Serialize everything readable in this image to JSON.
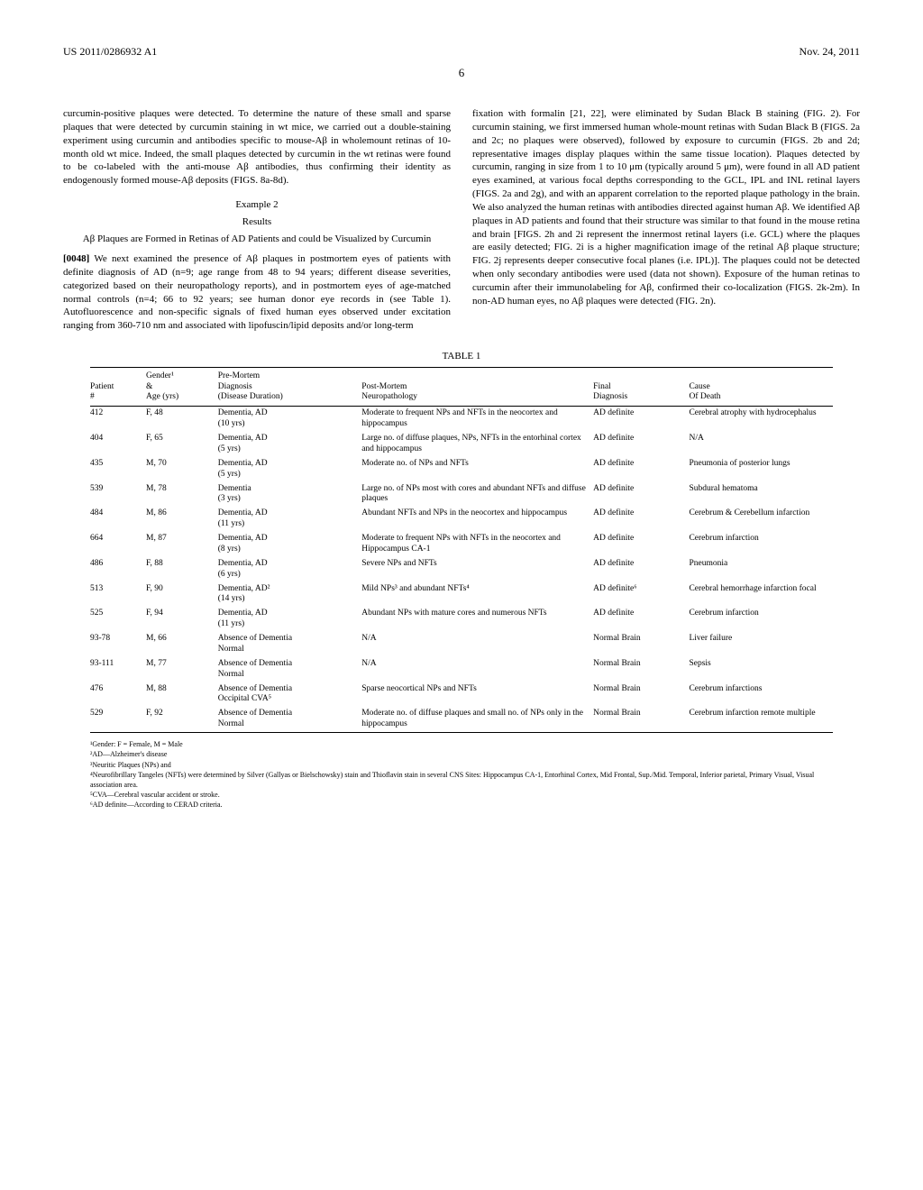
{
  "header": {
    "pub_number": "US 2011/0286932 A1",
    "pub_date": "Nov. 24, 2011",
    "page": "6"
  },
  "col_left": {
    "para1": "curcumin-positive plaques were detected. To determine the nature of these small and sparse plaques that were detected by curcumin staining in wt mice, we carried out a double-staining experiment using curcumin and antibodies specific to mouse-Aβ in wholemount retinas of 10-month old wt mice. Indeed, the small plaques detected by curcumin in the wt retinas were found to be co-labeled with the anti-mouse Aβ antibodies, thus confirming their identity as endogenously formed mouse-Aβ deposits (FIGS. 8a-8d).",
    "example_label": "Example 2",
    "results_label": "Results",
    "subtitle": "Aβ Plaques are Formed in Retinas of AD Patients and could be Visualized by Curcumin",
    "para2_num": "[0048]",
    "para2": " We next examined the presence of Aβ plaques in postmortem eyes of patients with definite diagnosis of AD (n=9; age range from 48 to 94 years; different disease severities, categorized based on their neuropathology reports), and in postmortem eyes of age-matched normal controls (n=4; 66 to 92 years; see human donor eye records in (see Table 1). Autofluorescence and non-specific signals of fixed human eyes observed under excitation ranging from 360-710 nm and associated with lipofuscin/lipid deposits and/or long-term"
  },
  "col_right": {
    "para1": "fixation with formalin [21, 22], were eliminated by Sudan Black B staining (FIG. 2). For curcumin staining, we first immersed human whole-mount retinas with Sudan Black B (FIGS. 2a and 2c; no plaques were observed), followed by exposure to curcumin (FIGS. 2b and 2d; representative images display plaques within the same tissue location). Plaques detected by curcumin, ranging in size from 1 to 10 μm (typically around 5 μm), were found in all AD patient eyes examined, at various focal depths corresponding to the GCL, IPL and INL retinal layers (FIGS. 2a and 2g), and with an apparent correlation to the reported plaque pathology in the brain. We also analyzed the human retinas with antibodies directed against human Aβ. We identified Aβ plaques in AD patients and found that their structure was similar to that found in the mouse retina and brain [FIGS. 2h and 2i represent the innermost retinal layers (i.e. GCL) where the plaques are easily detected; FIG. 2i is a higher magnification image of the retinal Aβ plaque structure; FIG. 2j represents deeper consecutive focal planes (i.e. IPL)]. The plaques could not be detected when only secondary antibodies were used (data not shown). Exposure of the human retinas to curcumin after their immunolabeling for Aβ, confirmed their co-localization (FIGS. 2k-2m). In non-AD human eyes, no Aβ plaques were detected (FIG. 2n)."
  },
  "table": {
    "caption": "TABLE 1",
    "headers": {
      "patient": "Patient\n#",
      "gender": "Gender¹\n&\nAge (yrs)",
      "premortem": "Pre-Mortem\nDiagnosis\n(Disease Duration)",
      "postmortem": "Post-Mortem\nNeuropathology",
      "final": "Final\nDiagnosis",
      "cause": "Cause\nOf Death"
    },
    "rows": [
      {
        "patient": "412",
        "gender": "F, 48",
        "premortem": "Dementia, AD\n(10 yrs)",
        "postmortem": "Moderate to frequent NPs and NFTs in the neocortex and hippocampus",
        "final": "AD definite",
        "cause": "Cerebral atrophy with hydrocephalus"
      },
      {
        "patient": "404",
        "gender": "F, 65",
        "premortem": "Dementia, AD\n(5 yrs)",
        "postmortem": "Large no. of diffuse plaques, NPs, NFTs in the entorhinal cortex and hippocampus",
        "final": "AD definite",
        "cause": "N/A"
      },
      {
        "patient": "435",
        "gender": "M, 70",
        "premortem": "Dementia, AD\n(5 yrs)",
        "postmortem": "Moderate no. of NPs and NFTs",
        "final": "AD definite",
        "cause": "Pneumonia of posterior lungs"
      },
      {
        "patient": "539",
        "gender": "M, 78",
        "premortem": "Dementia\n(3 yrs)",
        "postmortem": "Large no. of NPs most with cores and abundant NFTs and diffuse plaques",
        "final": "AD definite",
        "cause": "Subdural hematoma"
      },
      {
        "patient": "484",
        "gender": "M, 86",
        "premortem": "Dementia, AD\n(11 yrs)",
        "postmortem": "Abundant NFTs and NPs in the neocortex and hippocampus",
        "final": "AD definite",
        "cause": "Cerebrum & Cerebellum infarction"
      },
      {
        "patient": "664",
        "gender": "M, 87",
        "premortem": "Dementia, AD\n(8 yrs)",
        "postmortem": "Moderate to frequent NPs with NFTs in the neocortex and Hippocampus CA-1",
        "final": "AD definite",
        "cause": "Cerebrum infarction"
      },
      {
        "patient": "486",
        "gender": "F, 88",
        "premortem": "Dementia, AD\n(6 yrs)",
        "postmortem": "Severe NPs and NFTs",
        "final": "AD definite",
        "cause": "Pneumonia"
      },
      {
        "patient": "513",
        "gender": "F, 90",
        "premortem": "Dementia, AD²\n(14 yrs)",
        "postmortem": "Mild NPs³ and abundant NFTs⁴",
        "final": "AD definite⁶",
        "cause": "Cerebral hemorrhage infarction focal"
      },
      {
        "patient": "525",
        "gender": "F, 94",
        "premortem": "Dementia, AD\n(11 yrs)",
        "postmortem": "Abundant NPs with mature cores and numerous NFTs",
        "final": "AD definite",
        "cause": "Cerebrum infarction"
      },
      {
        "patient": "93-78",
        "gender": "M, 66",
        "premortem": "Absence of Dementia\nNormal",
        "postmortem": "N/A",
        "final": "Normal Brain",
        "cause": "Liver failure"
      },
      {
        "patient": "93-111",
        "gender": "M, 77",
        "premortem": "Absence of Dementia\nNormal",
        "postmortem": "N/A",
        "final": "Normal Brain",
        "cause": "Sepsis"
      },
      {
        "patient": "476",
        "gender": "M, 88",
        "premortem": "Absence of Dementia\nOccipital CVA⁵",
        "postmortem": "Sparse neocortical NPs and NFTs",
        "final": "Normal Brain",
        "cause": "Cerebrum infarctions"
      },
      {
        "patient": "529",
        "gender": "F, 92",
        "premortem": "Absence of Dementia\nNormal",
        "postmortem": "Moderate no. of diffuse plaques and small no. of NPs only in the hippocampus",
        "final": "Normal Brain",
        "cause": "Cerebrum infarction remote multiple"
      }
    ],
    "footnotes": {
      "f1": "¹Gender: F = Female, M = Male",
      "f2": "²AD—Alzheimer's disease",
      "f3": "³Neuritic Plaques (NPs) and",
      "f4": "⁴Neurofibrillary Tangeles (NFTs) were determined by Silver (Gallyas or Bielschowsky) stain and Thioflavin stain in several CNS Sites: Hippocampus CA-1, Entorhinal Cortex, Mid Frontal, Sup./Mid. Temporal, Inferior parietal, Primary Visual, Visual association area.",
      "f5": "⁵CVA—Cerebral vascular accident or stroke.",
      "f6": "⁶AD definite—According to CERAD criteria."
    }
  },
  "col_widths": {
    "patient": "7%",
    "gender": "9%",
    "premortem": "18%",
    "postmortem": "29%",
    "final": "12%",
    "cause": "18%"
  }
}
